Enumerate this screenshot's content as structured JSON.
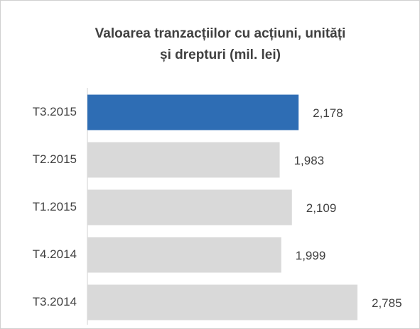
{
  "chart_data": {
    "type": "barh",
    "title": [
      "Valoarea tranzacțiilor cu acțiuni, unități",
      "și drepturi (mil. lei)"
    ],
    "categories": [
      "T3.2015",
      "T2.2015",
      "T1.2015",
      "T4.2014",
      "T3.2014"
    ],
    "values": [
      2178,
      1983,
      2109,
      1999,
      2785
    ],
    "value_labels": [
      "2,178",
      "1,983",
      "2,109",
      "1,999",
      "2,785"
    ],
    "colors": [
      "#2e6db4",
      "#d9d9d9",
      "#d9d9d9",
      "#d9d9d9",
      "#d9d9d9"
    ]
  }
}
